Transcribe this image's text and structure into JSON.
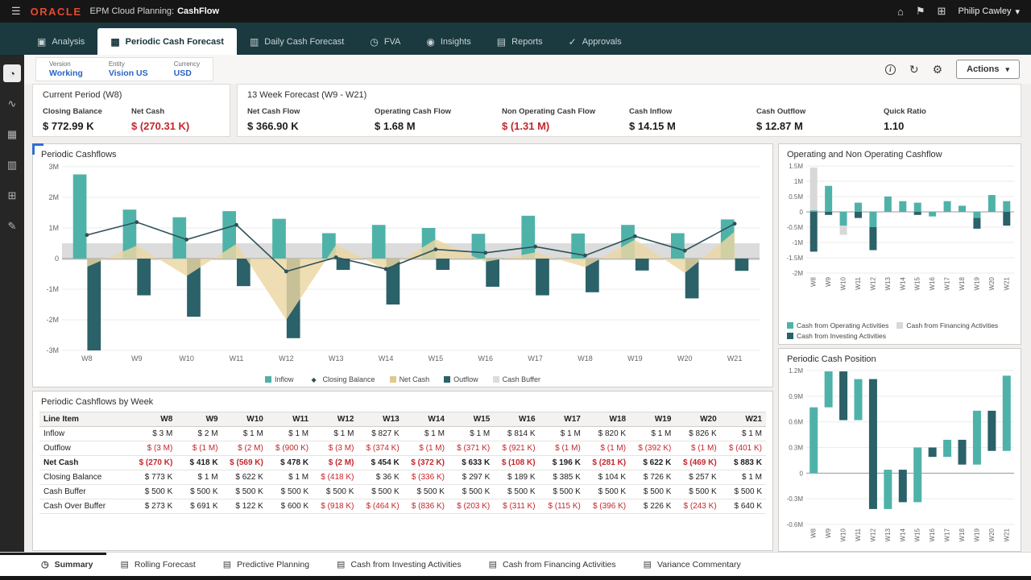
{
  "topbar": {
    "brand": "ORACLE",
    "app_label": "EPM Cloud Planning:",
    "app_name": "CashFlow",
    "user": "Philip Cawley"
  },
  "icons": {
    "menu": "☰",
    "home": "⌂",
    "notifications": "⚑",
    "navigator": "⊞",
    "caret": "▾",
    "info": "i",
    "refresh": "↻",
    "gear": "⚙",
    "analysis": "▣",
    "periodic": "▦",
    "daily": "▥",
    "fva": "◷",
    "insights": "◉",
    "reports": "▤",
    "approvals": "✓",
    "side1": "◔",
    "side2": "∿",
    "side3": "▦",
    "side4": "▥",
    "side5": "⊞",
    "side6": "✎",
    "summary": "◷",
    "page": "▤"
  },
  "nav": {
    "tabs": [
      "Analysis",
      "Periodic Cash Forecast",
      "Daily Cash Forecast",
      "FVA",
      "Insights",
      "Reports",
      "Approvals"
    ]
  },
  "pov": {
    "dims": [
      {
        "label": "Version",
        "value": "Working"
      },
      {
        "label": "Entity",
        "value": "Vision US"
      },
      {
        "label": "Currency",
        "value": "USD"
      }
    ],
    "actions": "Actions"
  },
  "kpi": {
    "current": {
      "title": "Current Period (W8)",
      "metrics": [
        {
          "label": "Closing Balance",
          "value": "$ 772.99 K"
        },
        {
          "label": "Net Cash",
          "value": "$ (270.31 K)"
        }
      ]
    },
    "forecast": {
      "title": "13 Week Forecast (W9 - W21)",
      "metrics": [
        {
          "label": "Net Cash Flow",
          "value": "$ 366.90 K"
        },
        {
          "label": "Operating Cash Flow",
          "value": "$ 1.68 M"
        },
        {
          "label": "Non Operating Cash Flow",
          "value": "$ (1.31 M)"
        },
        {
          "label": "Cash Inflow",
          "value": "$ 14.15 M"
        },
        {
          "label": "Cash Outflow",
          "value": "$ 12.87 M"
        },
        {
          "label": "Quick Ratio",
          "value": "1.10"
        }
      ]
    }
  },
  "chart_data": [
    {
      "id": "periodic-cashflows",
      "type": "combo",
      "title": "Periodic Cashflows",
      "categories": [
        "W8",
        "W9",
        "W10",
        "W11",
        "W12",
        "W13",
        "W14",
        "W15",
        "W16",
        "W17",
        "W18",
        "W19",
        "W20",
        "W21"
      ],
      "ylim": [
        -3,
        3
      ],
      "unit": "M",
      "yticks": [
        {
          "v": 3,
          "label": "3M"
        },
        {
          "v": 2,
          "label": "2M"
        },
        {
          "v": 1,
          "label": "1M"
        },
        {
          "v": 0,
          "label": "0"
        },
        {
          "v": -1,
          "label": "-1M"
        },
        {
          "v": -2,
          "label": "-2M"
        },
        {
          "v": -3,
          "label": "-3M"
        }
      ],
      "series": [
        {
          "name": "Inflow",
          "type": "bar",
          "color": "#4fb2a9",
          "values": [
            2.75,
            1.6,
            1.35,
            1.55,
            1.3,
            0.83,
            1.1,
            1.0,
            0.81,
            1.4,
            0.82,
            1.1,
            0.83,
            1.28
          ]
        },
        {
          "name": "Outflow",
          "type": "bar",
          "color": "#2b6168",
          "values": [
            -3.0,
            -1.2,
            -1.9,
            -0.9,
            -2.6,
            -0.37,
            -1.5,
            -0.37,
            -0.92,
            -1.2,
            -1.1,
            -0.39,
            -1.3,
            -0.4
          ]
        },
        {
          "name": "Net Cash",
          "type": "area",
          "color": "#ecd7a2",
          "values": [
            -0.27,
            0.42,
            -0.57,
            0.48,
            -2.0,
            0.45,
            -0.37,
            0.63,
            -0.11,
            0.2,
            -0.28,
            0.62,
            -0.47,
            0.88
          ]
        },
        {
          "name": "Closing Balance",
          "type": "line",
          "color": "#2e5158",
          "values": [
            0.77,
            1.19,
            0.62,
            1.1,
            -0.42,
            0.04,
            -0.34,
            0.3,
            0.19,
            0.39,
            0.1,
            0.73,
            0.26,
            1.14
          ]
        },
        {
          "name": "Cash Buffer",
          "type": "band",
          "color": "#dcdcdc",
          "values": [
            -0.05,
            0.5
          ]
        }
      ],
      "legend": [
        {
          "label": "Inflow",
          "color": "#4fb2a9",
          "shape": "square"
        },
        {
          "label": "Closing Balance",
          "color": "#2e5158",
          "shape": "line"
        },
        {
          "label": "Net Cash",
          "color": "#e0c98f",
          "shape": "square"
        },
        {
          "label": "Outflow",
          "color": "#2b6168",
          "shape": "square"
        },
        {
          "label": "Cash Buffer",
          "color": "#dcdcdc",
          "shape": "square"
        }
      ]
    },
    {
      "id": "op-nonop",
      "type": "stacked-bar",
      "title": "Operating and Non Operating Cashflow",
      "categories": [
        "W8",
        "W9",
        "W10",
        "W11",
        "W12",
        "W13",
        "W14",
        "W15",
        "W16",
        "W17",
        "W18",
        "W19",
        "W20",
        "W21"
      ],
      "ylim": [
        -2,
        1.5
      ],
      "unit": "M",
      "yticks": [
        {
          "v": 1.5,
          "label": "1.5M"
        },
        {
          "v": 1,
          "label": "1M"
        },
        {
          "v": 0.5,
          "label": "0.5M"
        },
        {
          "v": 0,
          "label": "0"
        },
        {
          "v": -0.5,
          "label": "-0.5M"
        },
        {
          "v": -1,
          "label": "-1M"
        },
        {
          "v": -1.5,
          "label": "-1.5M"
        },
        {
          "v": -2,
          "label": "-2M"
        }
      ],
      "series": [
        {
          "name": "Cash from Operating Activities",
          "color": "#4fb2a9",
          "values": [
            0.05,
            0.85,
            -0.45,
            0.3,
            -0.5,
            0.5,
            0.35,
            0.3,
            -0.15,
            0.35,
            0.2,
            -0.2,
            0.55,
            0.35
          ]
        },
        {
          "name": "Cash from Financing Activities",
          "color": "#d8d8d8",
          "values": [
            1.4,
            0,
            -0.3,
            0,
            0,
            0,
            0,
            0,
            0,
            0,
            0,
            0,
            0,
            0
          ]
        },
        {
          "name": "Cash from Investing Activities",
          "color": "#2b6168",
          "values": [
            -1.3,
            -0.1,
            0,
            -0.2,
            -0.75,
            0,
            0,
            -0.1,
            0,
            0,
            0,
            -0.35,
            0,
            -0.45
          ]
        }
      ],
      "legend": [
        {
          "label": "Cash from Operating Activities",
          "color": "#4fb2a9",
          "shape": "square"
        },
        {
          "label": "Cash from Financing Activities",
          "color": "#d8d8d8",
          "shape": "square"
        },
        {
          "label": "Cash from Investing Activities",
          "color": "#2b6168",
          "shape": "square"
        }
      ]
    },
    {
      "id": "cash-position",
      "type": "waterfall",
      "title": "Periodic Cash Position",
      "categories": [
        "W8",
        "W9",
        "W10",
        "W11",
        "W12",
        "W13",
        "W14",
        "W15",
        "W16",
        "W17",
        "W18",
        "W19",
        "W20",
        "W21"
      ],
      "ylim": [
        -0.6,
        1.2
      ],
      "unit": "M",
      "yticks": [
        {
          "v": 1.2,
          "label": "1.2M"
        },
        {
          "v": 0.9,
          "label": "0.9M"
        },
        {
          "v": 0.6,
          "label": "0.6M"
        },
        {
          "v": 0.3,
          "label": "0.3M"
        },
        {
          "v": 0,
          "label": "0"
        },
        {
          "v": -0.3,
          "label": "-0.3M"
        },
        {
          "v": -0.6,
          "label": "-0.6M"
        }
      ],
      "values": [
        0.77,
        1.19,
        0.62,
        1.1,
        -0.42,
        0.04,
        -0.34,
        0.3,
        0.19,
        0.39,
        0.1,
        0.73,
        0.26,
        1.14
      ],
      "up_color": "#4fb2a9",
      "down_color": "#2b6168"
    }
  ],
  "table": {
    "title": "Periodic Cashflows by Week",
    "columns": [
      "Line Item",
      "W8",
      "W9",
      "W10",
      "W11",
      "W12",
      "W13",
      "W14",
      "W15",
      "W16",
      "W17",
      "W18",
      "W19",
      "W20",
      "W21"
    ],
    "rows": [
      {
        "label": "Inflow",
        "bold": false,
        "cells": [
          "$ 3 M",
          "$ 2 M",
          "$ 1 M",
          "$ 1 M",
          "$ 1 M",
          "$ 827 K",
          "$ 1 M",
          "$ 1 M",
          "$ 814 K",
          "$ 1 M",
          "$ 820 K",
          "$ 1 M",
          "$ 826 K",
          "$ 1 M"
        ]
      },
      {
        "label": "Outflow",
        "bold": false,
        "cells": [
          "$ (3 M)",
          "$ (1 M)",
          "$ (2 M)",
          "$ (900 K)",
          "$ (3 M)",
          "$ (374 K)",
          "$ (1 M)",
          "$ (371 K)",
          "$ (921 K)",
          "$ (1 M)",
          "$ (1 M)",
          "$ (392 K)",
          "$ (1 M)",
          "$ (401 K)"
        ]
      },
      {
        "label": "Net Cash",
        "bold": true,
        "cells": [
          "$ (270 K)",
          "$ 418 K",
          "$ (569 K)",
          "$ 478 K",
          "$ (2 M)",
          "$ 454 K",
          "$ (372 K)",
          "$ 633 K",
          "$ (108 K)",
          "$ 196 K",
          "$ (281 K)",
          "$ 622 K",
          "$ (469 K)",
          "$ 883 K"
        ]
      },
      {
        "label": "Closing Balance",
        "bold": false,
        "cells": [
          "$ 773 K",
          "$ 1 M",
          "$ 622 K",
          "$ 1 M",
          "$ (418 K)",
          "$ 36 K",
          "$ (336 K)",
          "$ 297 K",
          "$ 189 K",
          "$ 385 K",
          "$ 104 K",
          "$ 726 K",
          "$ 257 K",
          "$ 1 M"
        ]
      },
      {
        "label": "Cash Buffer",
        "bold": false,
        "cells": [
          "$ 500 K",
          "$ 500 K",
          "$ 500 K",
          "$ 500 K",
          "$ 500 K",
          "$ 500 K",
          "$ 500 K",
          "$ 500 K",
          "$ 500 K",
          "$ 500 K",
          "$ 500 K",
          "$ 500 K",
          "$ 500 K",
          "$ 500 K"
        ]
      },
      {
        "label": "Cash Over Buffer",
        "bold": false,
        "cells": [
          "$ 273 K",
          "$ 691 K",
          "$ 122 K",
          "$ 600 K",
          "$ (918 K)",
          "$ (464 K)",
          "$ (836 K)",
          "$ (203 K)",
          "$ (311 K)",
          "$ (115 K)",
          "$ (396 K)",
          "$ 226 K",
          "$ (243 K)",
          "$ 640 K"
        ]
      }
    ]
  },
  "bottom_tabs": [
    "Summary",
    "Rolling Forecast",
    "Predictive Planning",
    "Cash from Investing Activities",
    "Cash from Financing Activities",
    "Variance Commentary"
  ]
}
